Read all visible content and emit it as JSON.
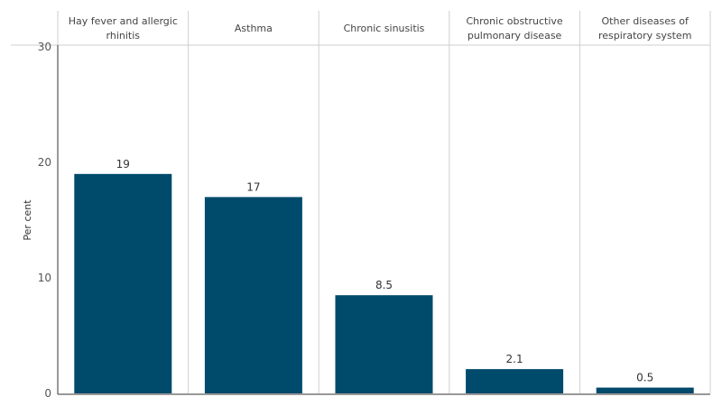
{
  "chart_data": {
    "type": "bar",
    "categories": [
      [
        "Hay fever and allergic",
        "rhinitis"
      ],
      [
        "Asthma"
      ],
      [
        "Chronic sinusitis"
      ],
      [
        "Chronic obstructive",
        "pulmonary disease"
      ],
      [
        "Other diseases of",
        "respiratory system"
      ]
    ],
    "values": [
      19,
      17,
      8.5,
      2.1,
      0.5
    ],
    "data_labels": [
      "19",
      "17",
      "8.5",
      "2.1",
      "0.5"
    ],
    "ylabel": "Per cent",
    "ylim": [
      0,
      30
    ],
    "yticks": [
      0,
      10,
      20,
      30
    ],
    "grid": false,
    "bar_color": "#004A6B"
  }
}
